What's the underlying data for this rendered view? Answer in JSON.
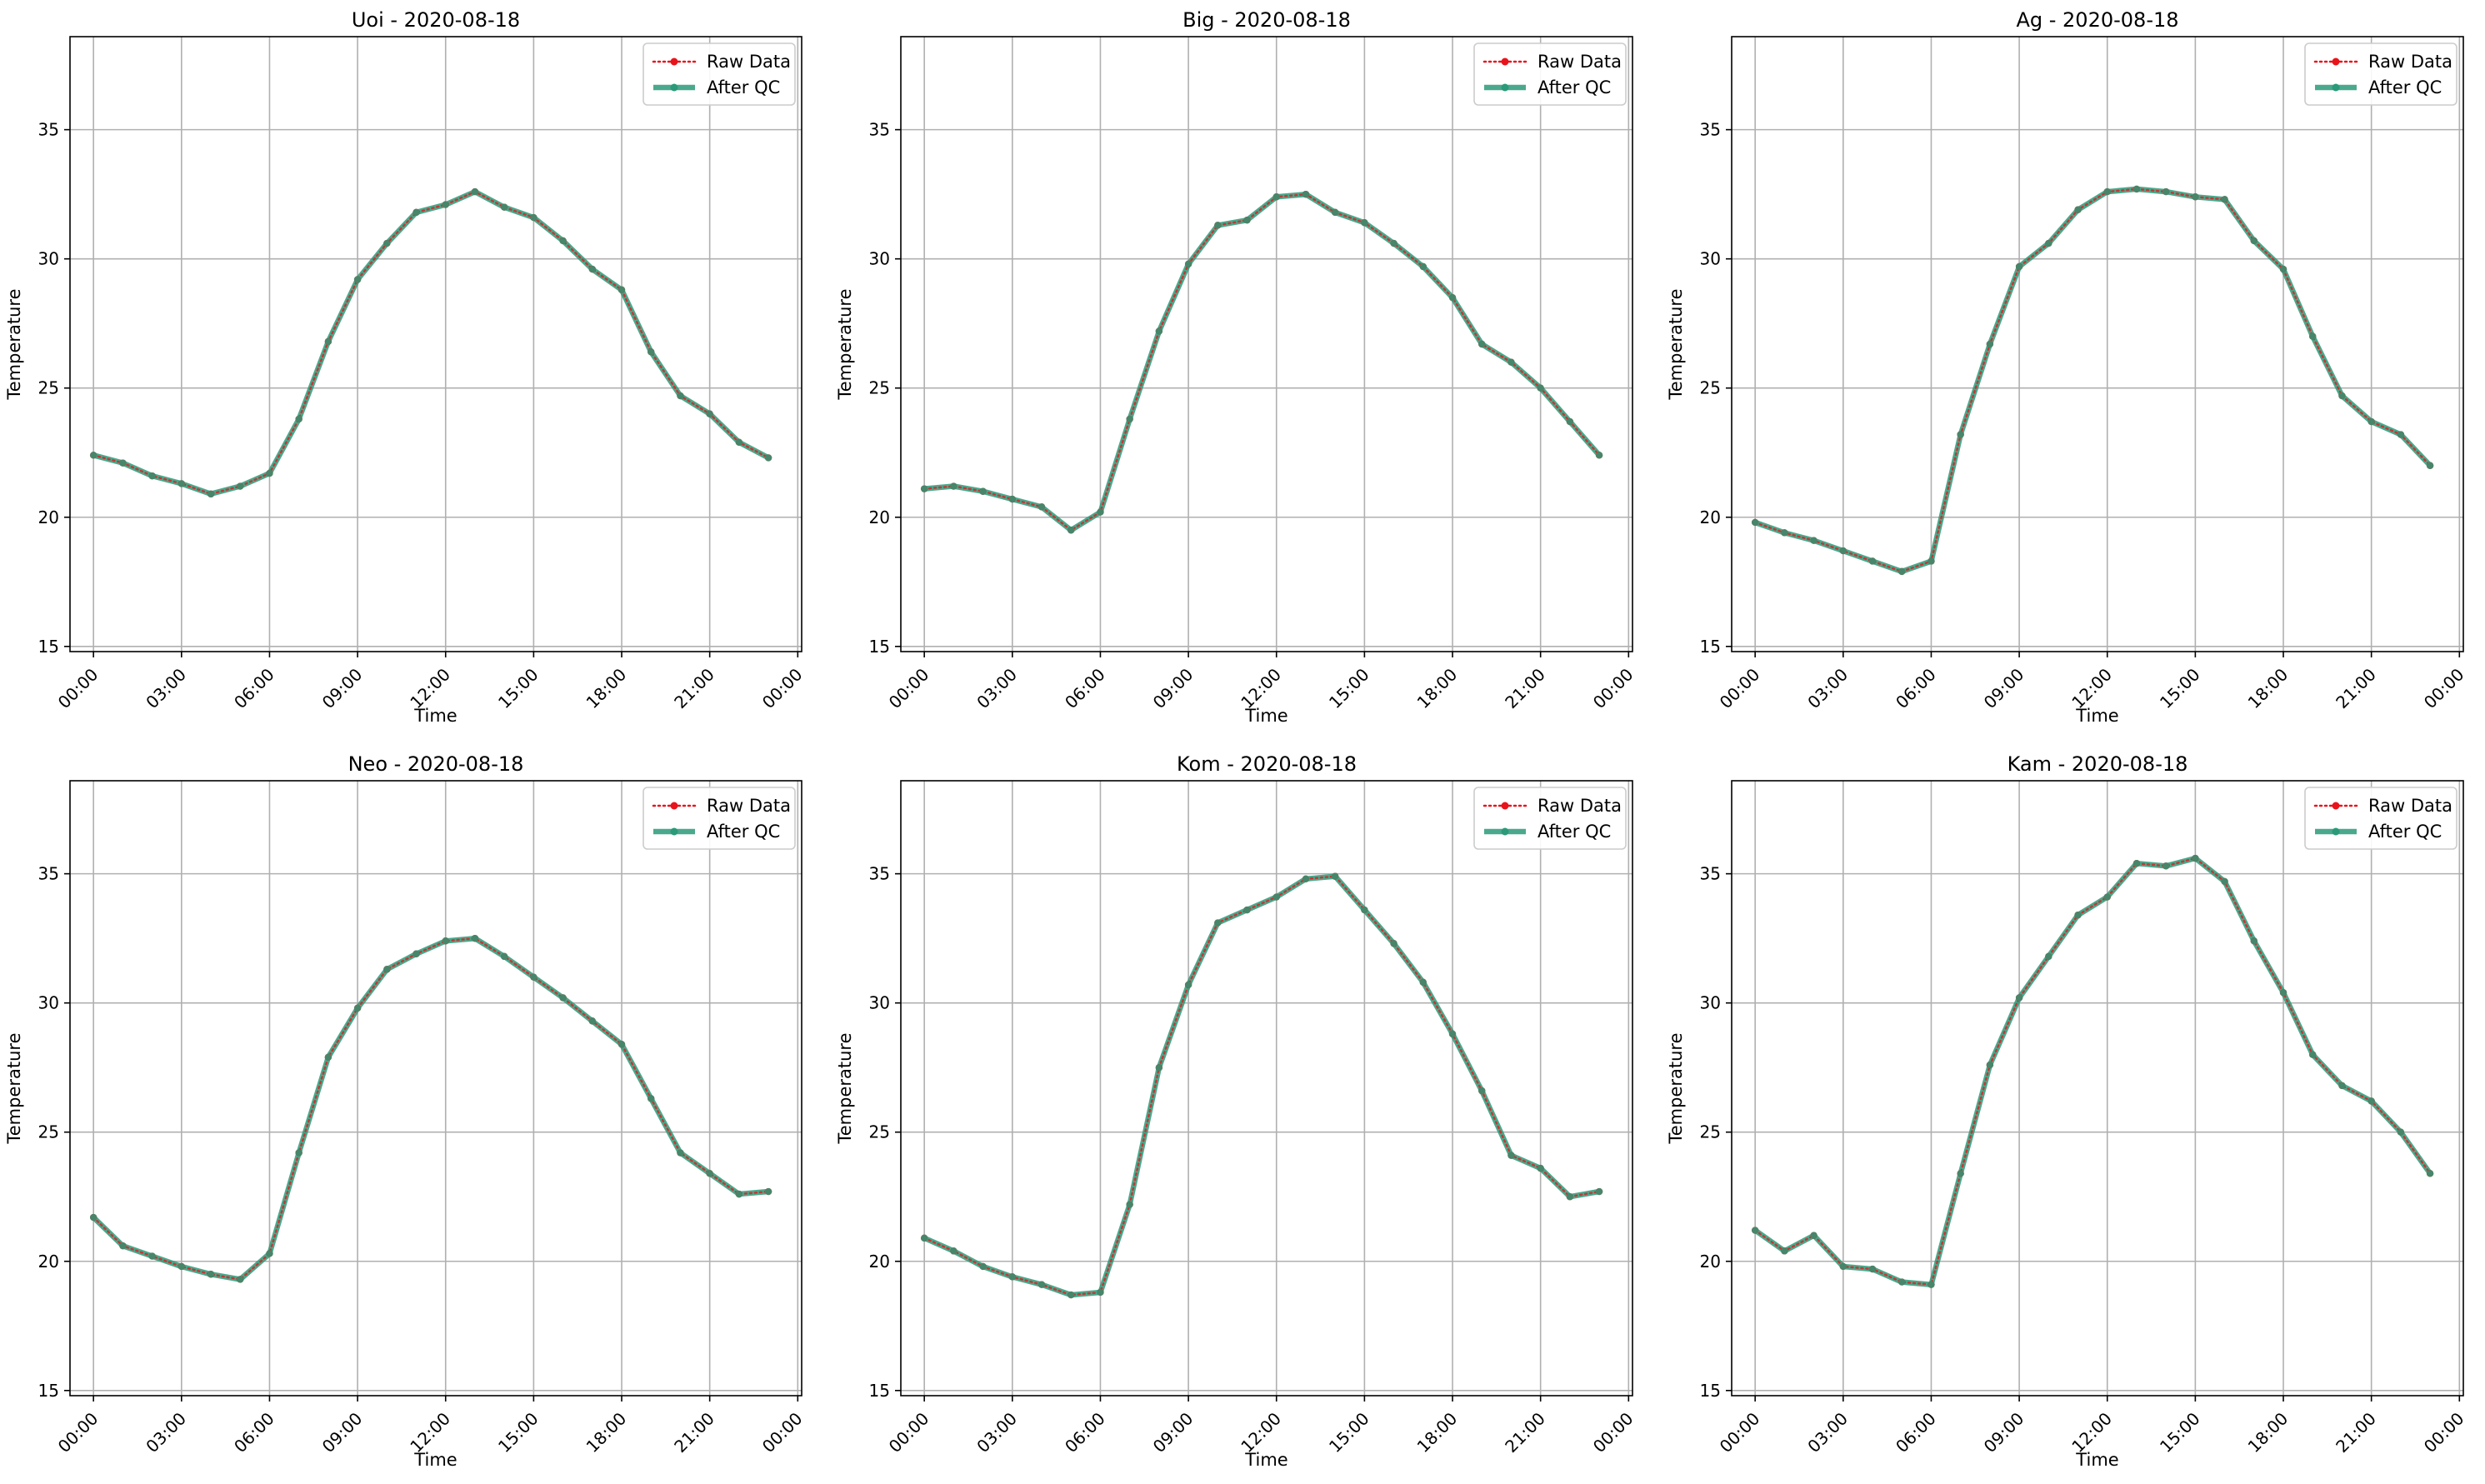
{
  "colors": {
    "raw": "#e8141b",
    "after_qc": "#2a9a78",
    "grid": "#b0b0b0",
    "axes": "#000000",
    "legend_border": "#cccccc"
  },
  "legend_entries": [
    "Raw Data",
    "After QC"
  ],
  "chart_data": [
    {
      "type": "line",
      "title": "Uoi - 2020-08-18",
      "xlabel": "Time",
      "ylabel": "Temperature",
      "xlim": [
        "-00:48",
        "24:08"
      ],
      "ylim": [
        14.8,
        38.6
      ],
      "xticks": [
        "00:00",
        "03:00",
        "06:00",
        "09:00",
        "12:00",
        "15:00",
        "18:00",
        "21:00",
        "00:00"
      ],
      "yticks": [
        15,
        20,
        25,
        30,
        35
      ],
      "grid": true,
      "legend": "top-right",
      "x": [
        "00:00",
        "01:00",
        "02:00",
        "03:00",
        "04:00",
        "05:00",
        "06:00",
        "07:00",
        "08:00",
        "09:00",
        "10:00",
        "11:00",
        "12:00",
        "13:00",
        "14:00",
        "15:00",
        "16:00",
        "17:00",
        "18:00",
        "19:00",
        "20:00",
        "21:00",
        "22:00",
        "23:00"
      ],
      "series": [
        {
          "name": "Raw Data",
          "style": "dotted",
          "values": [
            22.4,
            22.1,
            21.6,
            21.3,
            20.9,
            21.2,
            21.7,
            23.8,
            26.8,
            29.2,
            30.6,
            31.8,
            32.1,
            32.6,
            32.0,
            31.6,
            30.7,
            29.6,
            28.8,
            26.4,
            24.7,
            24.0,
            22.9,
            22.3
          ]
        },
        {
          "name": "After QC",
          "style": "solid",
          "values": [
            22.4,
            22.1,
            21.6,
            21.3,
            20.9,
            21.2,
            21.7,
            23.8,
            26.8,
            29.2,
            30.6,
            31.8,
            32.1,
            32.6,
            32.0,
            31.6,
            30.7,
            29.6,
            28.8,
            26.4,
            24.7,
            24.0,
            22.9,
            22.3
          ]
        }
      ]
    },
    {
      "type": "line",
      "title": "Big - 2020-08-18",
      "xlabel": "Time",
      "ylabel": "Temperature",
      "xlim": [
        "-00:48",
        "24:08"
      ],
      "ylim": [
        14.8,
        38.6
      ],
      "xticks": [
        "00:00",
        "03:00",
        "06:00",
        "09:00",
        "12:00",
        "15:00",
        "18:00",
        "21:00",
        "00:00"
      ],
      "yticks": [
        15,
        20,
        25,
        30,
        35
      ],
      "grid": true,
      "legend": "top-right",
      "x": [
        "00:00",
        "01:00",
        "02:00",
        "03:00",
        "04:00",
        "05:00",
        "06:00",
        "07:00",
        "08:00",
        "09:00",
        "10:00",
        "11:00",
        "12:00",
        "13:00",
        "14:00",
        "15:00",
        "16:00",
        "17:00",
        "18:00",
        "19:00",
        "20:00",
        "21:00",
        "22:00",
        "23:00"
      ],
      "series": [
        {
          "name": "Raw Data",
          "style": "dotted",
          "values": [
            21.1,
            21.2,
            21.0,
            20.7,
            20.4,
            19.5,
            20.2,
            23.8,
            27.2,
            29.8,
            31.3,
            31.5,
            32.4,
            32.5,
            31.8,
            31.4,
            30.6,
            29.7,
            28.5,
            26.7,
            26.0,
            25.0,
            23.7,
            22.4
          ]
        },
        {
          "name": "After QC",
          "style": "solid",
          "values": [
            21.1,
            21.2,
            21.0,
            20.7,
            20.4,
            19.5,
            20.2,
            23.8,
            27.2,
            29.8,
            31.3,
            31.5,
            32.4,
            32.5,
            31.8,
            31.4,
            30.6,
            29.7,
            28.5,
            26.7,
            26.0,
            25.0,
            23.7,
            22.4
          ]
        }
      ]
    },
    {
      "type": "line",
      "title": "Ag - 2020-08-18",
      "xlabel": "Time",
      "ylabel": "Temperature",
      "xlim": [
        "-00:48",
        "24:08"
      ],
      "ylim": [
        14.8,
        38.6
      ],
      "xticks": [
        "00:00",
        "03:00",
        "06:00",
        "09:00",
        "12:00",
        "15:00",
        "18:00",
        "21:00",
        "00:00"
      ],
      "yticks": [
        15,
        20,
        25,
        30,
        35
      ],
      "grid": true,
      "legend": "top-right",
      "x": [
        "00:00",
        "01:00",
        "02:00",
        "03:00",
        "04:00",
        "05:00",
        "06:00",
        "07:00",
        "08:00",
        "09:00",
        "10:00",
        "11:00",
        "12:00",
        "13:00",
        "14:00",
        "15:00",
        "16:00",
        "17:00",
        "18:00",
        "19:00",
        "20:00",
        "21:00",
        "22:00",
        "23:00"
      ],
      "series": [
        {
          "name": "Raw Data",
          "style": "dotted",
          "values": [
            19.8,
            19.4,
            19.1,
            18.7,
            18.3,
            17.9,
            18.3,
            23.2,
            26.7,
            29.7,
            30.6,
            31.9,
            32.6,
            32.7,
            32.6,
            32.4,
            32.3,
            30.7,
            29.6,
            27.0,
            24.7,
            23.7,
            23.2,
            22.0
          ]
        },
        {
          "name": "After QC",
          "style": "solid",
          "values": [
            19.8,
            19.4,
            19.1,
            18.7,
            18.3,
            17.9,
            18.3,
            23.2,
            26.7,
            29.7,
            30.6,
            31.9,
            32.6,
            32.7,
            32.6,
            32.4,
            32.3,
            30.7,
            29.6,
            27.0,
            24.7,
            23.7,
            23.2,
            22.0
          ]
        }
      ]
    },
    {
      "type": "line",
      "title": "Neo - 2020-08-18",
      "xlabel": "Time",
      "ylabel": "Temperature",
      "xlim": [
        "-00:48",
        "24:08"
      ],
      "ylim": [
        14.8,
        38.6
      ],
      "xticks": [
        "00:00",
        "03:00",
        "06:00",
        "09:00",
        "12:00",
        "15:00",
        "18:00",
        "21:00",
        "00:00"
      ],
      "yticks": [
        15,
        20,
        25,
        30,
        35
      ],
      "grid": true,
      "legend": "top-right",
      "x": [
        "00:00",
        "01:00",
        "02:00",
        "03:00",
        "04:00",
        "05:00",
        "06:00",
        "07:00",
        "08:00",
        "09:00",
        "10:00",
        "11:00",
        "12:00",
        "13:00",
        "14:00",
        "15:00",
        "16:00",
        "17:00",
        "18:00",
        "19:00",
        "20:00",
        "21:00",
        "22:00",
        "23:00"
      ],
      "series": [
        {
          "name": "Raw Data",
          "style": "dotted",
          "values": [
            21.7,
            20.6,
            20.2,
            19.8,
            19.5,
            19.3,
            20.3,
            24.2,
            27.9,
            29.8,
            31.3,
            31.9,
            32.4,
            32.5,
            31.8,
            31.0,
            30.2,
            29.3,
            28.4,
            26.3,
            24.2,
            23.4,
            22.6,
            22.7
          ]
        },
        {
          "name": "After QC",
          "style": "solid",
          "values": [
            21.7,
            20.6,
            20.2,
            19.8,
            19.5,
            19.3,
            20.3,
            24.2,
            27.9,
            29.8,
            31.3,
            31.9,
            32.4,
            32.5,
            31.8,
            31.0,
            30.2,
            29.3,
            28.4,
            26.3,
            24.2,
            23.4,
            22.6,
            22.7
          ]
        }
      ]
    },
    {
      "type": "line",
      "title": "Kom - 2020-08-18",
      "xlabel": "Time",
      "ylabel": "Temperature",
      "xlim": [
        "-00:48",
        "24:08"
      ],
      "ylim": [
        14.8,
        38.6
      ],
      "xticks": [
        "00:00",
        "03:00",
        "06:00",
        "09:00",
        "12:00",
        "15:00",
        "18:00",
        "21:00",
        "00:00"
      ],
      "yticks": [
        15,
        20,
        25,
        30,
        35
      ],
      "grid": true,
      "legend": "top-right",
      "x": [
        "00:00",
        "01:00",
        "02:00",
        "03:00",
        "04:00",
        "05:00",
        "06:00",
        "07:00",
        "08:00",
        "09:00",
        "10:00",
        "11:00",
        "12:00",
        "13:00",
        "14:00",
        "15:00",
        "16:00",
        "17:00",
        "18:00",
        "19:00",
        "20:00",
        "21:00",
        "22:00",
        "23:00"
      ],
      "series": [
        {
          "name": "Raw Data",
          "style": "dotted",
          "values": [
            20.9,
            20.4,
            19.8,
            19.4,
            19.1,
            18.7,
            18.8,
            22.2,
            27.5,
            30.7,
            33.1,
            33.6,
            34.1,
            34.8,
            34.9,
            33.6,
            32.3,
            30.8,
            28.8,
            26.6,
            24.1,
            23.6,
            22.5,
            22.7
          ]
        },
        {
          "name": "After QC",
          "style": "solid",
          "values": [
            20.9,
            20.4,
            19.8,
            19.4,
            19.1,
            18.7,
            18.8,
            22.2,
            27.5,
            30.7,
            33.1,
            33.6,
            34.1,
            34.8,
            34.9,
            33.6,
            32.3,
            30.8,
            28.8,
            26.6,
            24.1,
            23.6,
            22.5,
            22.7
          ]
        }
      ]
    },
    {
      "type": "line",
      "title": "Kam - 2020-08-18",
      "xlabel": "Time",
      "ylabel": "Temperature",
      "xlim": [
        "-00:48",
        "24:08"
      ],
      "ylim": [
        14.8,
        38.6
      ],
      "xticks": [
        "00:00",
        "03:00",
        "06:00",
        "09:00",
        "12:00",
        "15:00",
        "18:00",
        "21:00",
        "00:00"
      ],
      "yticks": [
        15,
        20,
        25,
        30,
        35
      ],
      "grid": true,
      "legend": "top-right",
      "x": [
        "00:00",
        "01:00",
        "02:00",
        "03:00",
        "04:00",
        "05:00",
        "06:00",
        "07:00",
        "08:00",
        "09:00",
        "10:00",
        "11:00",
        "12:00",
        "13:00",
        "14:00",
        "15:00",
        "16:00",
        "17:00",
        "18:00",
        "19:00",
        "20:00",
        "21:00",
        "22:00",
        "23:00"
      ],
      "series": [
        {
          "name": "Raw Data",
          "style": "dotted",
          "values": [
            21.2,
            20.4,
            21.0,
            19.8,
            19.7,
            19.2,
            19.1,
            23.4,
            27.6,
            30.2,
            31.8,
            33.4,
            34.1,
            35.4,
            35.3,
            35.6,
            34.7,
            32.4,
            30.4,
            28.0,
            26.8,
            26.2,
            25.0,
            23.4
          ]
        },
        {
          "name": "After QC",
          "style": "solid",
          "values": [
            21.2,
            20.4,
            21.0,
            19.8,
            19.7,
            19.2,
            19.1,
            23.4,
            27.6,
            30.2,
            31.8,
            33.4,
            34.1,
            35.4,
            35.3,
            35.6,
            34.7,
            32.4,
            30.4,
            28.0,
            26.8,
            26.2,
            25.0,
            23.4
          ]
        }
      ]
    }
  ]
}
